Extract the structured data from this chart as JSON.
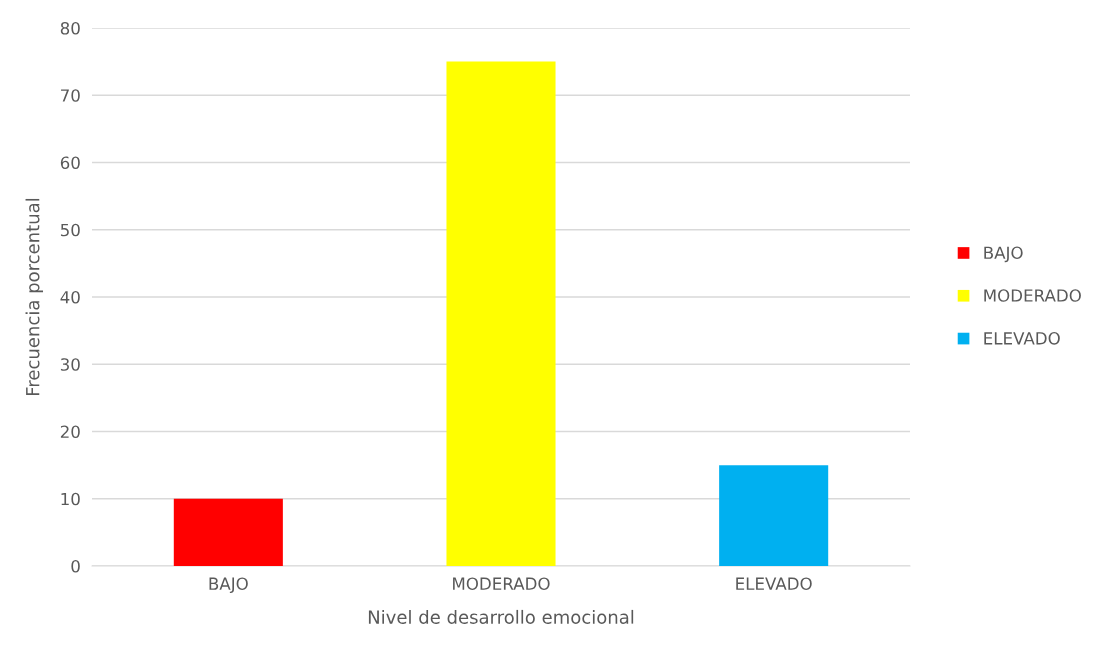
{
  "chart_data": {
    "type": "bar",
    "xlabel": "Nivel de desarrollo emocional",
    "ylabel": "Frecuencia porcentual",
    "categories": [
      "BAJO",
      "MODERADO",
      "ELEVADO"
    ],
    "series": [
      {
        "name": "BAJO",
        "color": "#ff0000",
        "values": [
          10,
          null,
          null
        ]
      },
      {
        "name": "MODERADO",
        "color": "#ffff00",
        "values": [
          null,
          75,
          null
        ]
      },
      {
        "name": "ELEVADO",
        "color": "#00b0f0",
        "values": [
          null,
          null,
          15
        ]
      }
    ],
    "ylim": [
      0,
      80
    ],
    "yticks": [
      0,
      10,
      20,
      30,
      40,
      50,
      60,
      70,
      80
    ],
    "grid": "y",
    "legend": "right"
  }
}
